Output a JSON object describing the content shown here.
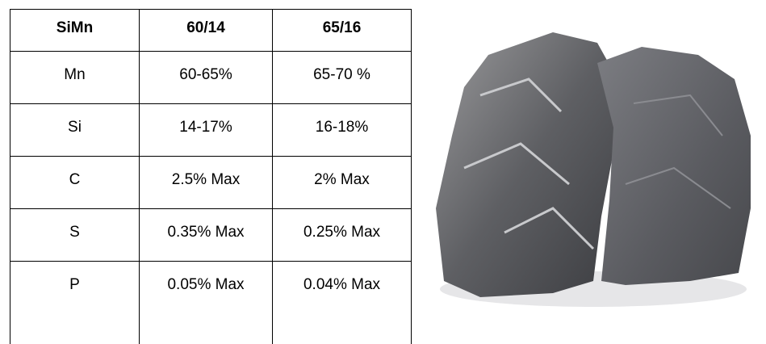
{
  "table": {
    "header": [
      "SiMn",
      "60/14",
      "65/16"
    ],
    "rows": [
      [
        "Mn",
        "60-65%",
        "65-70 %"
      ],
      [
        "Si",
        "14-17%",
        "16-18%"
      ],
      [
        "C",
        "2.5% Max",
        "2% Max"
      ],
      [
        "S",
        "0.35% Max",
        "0.25% Max"
      ],
      [
        "P",
        "0.05% Max",
        "0.04% Max"
      ]
    ]
  }
}
